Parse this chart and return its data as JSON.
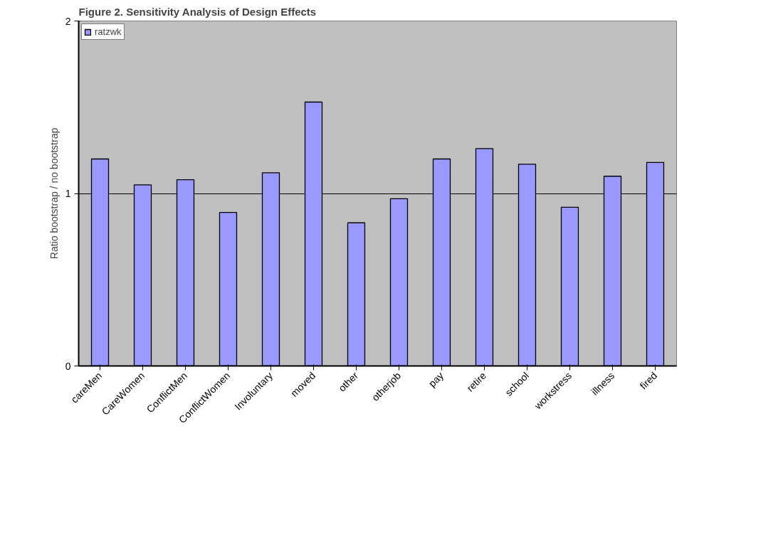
{
  "chart_data": {
    "type": "bar",
    "title": "Figure 2.  Sensitivity Analysis of Design Effects",
    "ylabel": "Ratio bootstrap / no bootstrap",
    "categories": [
      "careMen",
      "CareWomen",
      "ConflictMen",
      "ConflictWomen",
      "Involuntary",
      "moved",
      "other",
      "otherjob",
      "pay",
      "retire",
      "school",
      "workstress",
      "illness",
      "fired"
    ],
    "series": [
      {
        "name": "ratzwk",
        "color": "#9999ff",
        "values": [
          1.2,
          1.05,
          1.08,
          0.89,
          1.12,
          1.53,
          0.83,
          0.97,
          1.2,
          1.26,
          1.17,
          0.92,
          1.1,
          1.18
        ]
      }
    ],
    "ylim": [
      0,
      2
    ],
    "yticks": [
      0,
      1,
      2
    ],
    "grid": "y",
    "legend": "top left"
  }
}
